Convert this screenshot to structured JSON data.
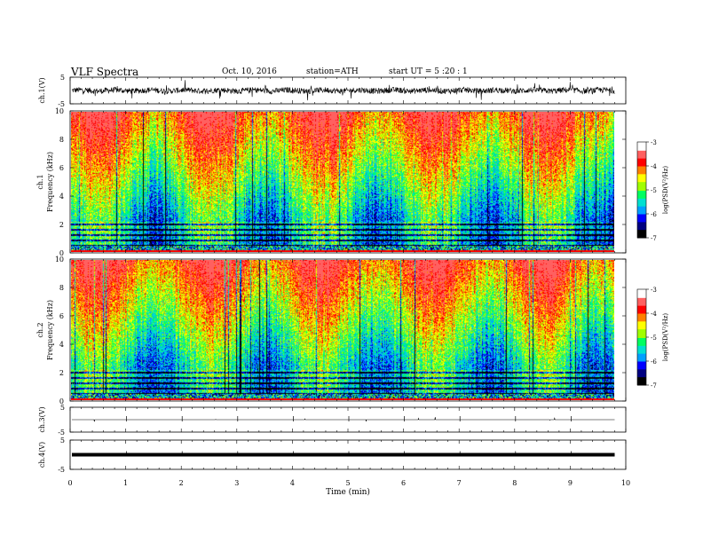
{
  "header": {
    "title": "VLF  Spectra",
    "date": "Oct. 10, 2016",
    "station": "station=ATH",
    "start": "start  UT  =   5  :20 : 1"
  },
  "colors": {
    "spectrum": [
      "#000000",
      "#000080",
      "#0000ff",
      "#00a0ff",
      "#00e0d0",
      "#00ff60",
      "#a0ff00",
      "#ffff00",
      "#ff8000",
      "#ff0000",
      "#ff6060",
      "#ffffff"
    ]
  },
  "chart_data": [
    {
      "type": "line",
      "ylabel": "ch.1(V)",
      "yticks": [
        "5",
        "-5"
      ],
      "ylim": [
        -5,
        5
      ],
      "xlim": [
        0,
        10
      ],
      "signal": "dense noisy waveform centered near 0 V with amplitude about 1-3 V"
    },
    {
      "type": "heatmap",
      "ylabel": "ch.1\nFrequency (kHz)",
      "ylabel_line1": "ch.1",
      "ylabel_line2": "Frequency  (kHz)",
      "yticks": [
        "0",
        "2",
        "4",
        "6",
        "8",
        "10"
      ],
      "ylim": [
        0,
        10
      ],
      "xlim": [
        0,
        9.8
      ],
      "colorbar": {
        "label": "log(PSD(V²/Hz)",
        "ticks": [
          "-3",
          "-4",
          "-5",
          "-6",
          "-7"
        ],
        "range": [
          -7,
          -3
        ]
      }
    },
    {
      "type": "heatmap",
      "ylabel": "ch.2\nFrequency (kHz)",
      "ylabel_line1": "ch.2",
      "ylabel_line2": "Frequency  (kHz)",
      "yticks": [
        "0",
        "2",
        "4",
        "6",
        "8",
        "10"
      ],
      "ylim": [
        0,
        10
      ],
      "xlim": [
        0,
        9.8
      ],
      "colorbar": {
        "label": "log(PSD(V²/Hz)",
        "ticks": [
          "-3",
          "-4",
          "-5",
          "-6",
          "-7"
        ],
        "range": [
          -7,
          -3
        ]
      }
    },
    {
      "type": "line",
      "ylabel": "ch.3(V)",
      "yticks": [
        "5",
        "-5"
      ],
      "ylim": [
        -5,
        5
      ],
      "xlim": [
        0,
        10
      ],
      "signal": "flat line near 0 V with occasional small spikes"
    },
    {
      "type": "line",
      "ylabel": "ch.4(V)",
      "yticks": [
        "5",
        "-5"
      ],
      "ylim": [
        -5,
        5
      ],
      "xlim": [
        0,
        10
      ],
      "signal": "thick constant line near 0 V"
    }
  ],
  "xaxis": {
    "label": "Time  (min)",
    "ticks": [
      "0",
      "1",
      "2",
      "3",
      "4",
      "5",
      "6",
      "7",
      "8",
      "9",
      "10"
    ],
    "range": [
      0,
      10
    ]
  }
}
